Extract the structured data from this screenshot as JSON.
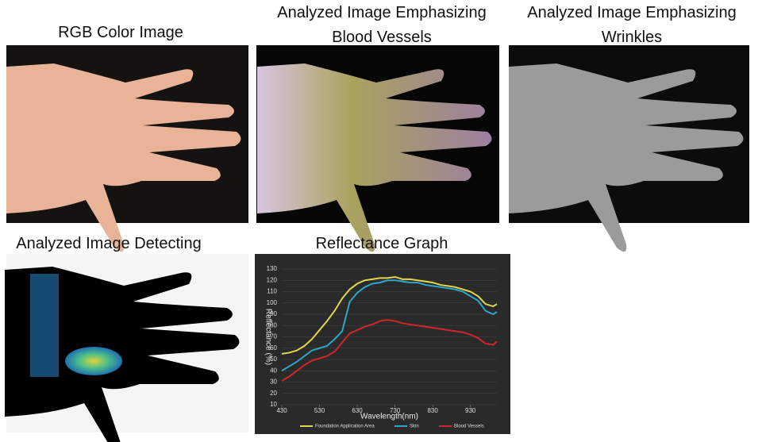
{
  "panels": [
    {
      "title": [
        "RGB Color Image"
      ]
    },
    {
      "title": [
        "Analyzed Image Emphasizing",
        "Blood Vessels"
      ]
    },
    {
      "title": [
        "Analyzed Image Emphasizing",
        "Wrinkles"
      ]
    },
    {
      "title": [
        "Analyzed Image Detecting"
      ]
    },
    {
      "title": [
        "Reflectance Graph"
      ]
    }
  ],
  "chart_data": {
    "type": "line",
    "x_label": "Wavelength(nm)",
    "y_label": "Reflectance (%)",
    "x": [
      430,
      450,
      470,
      490,
      510,
      530,
      550,
      570,
      590,
      610,
      630,
      650,
      670,
      690,
      710,
      730,
      750,
      770,
      790,
      810,
      830,
      850,
      870,
      890,
      910,
      930,
      950,
      970,
      990,
      1000
    ],
    "series": [
      {
        "name": "Foundation Application Area",
        "color": "#e3d64c",
        "values": [
          55,
          56,
          58,
          62,
          68,
          76,
          84,
          93,
          104,
          112,
          117,
          120,
          121,
          122,
          122,
          123,
          121,
          121,
          120,
          119,
          118,
          116,
          115,
          114,
          112,
          110,
          106,
          99,
          97,
          99
        ]
      },
      {
        "name": "Skin",
        "color": "#2aa7c9",
        "values": [
          40,
          44,
          48,
          53,
          58,
          60,
          62,
          68,
          75,
          101,
          109,
          114,
          117,
          118,
          120,
          120,
          119,
          118,
          118,
          116,
          115,
          114,
          113,
          112,
          110,
          106,
          102,
          93,
          90,
          92
        ]
      },
      {
        "name": "Blood Vessels",
        "color": "#d0262a",
        "values": [
          31,
          35,
          40,
          45,
          49,
          51,
          53,
          57,
          65,
          73,
          76,
          79,
          81,
          84,
          85,
          84,
          82,
          81,
          80,
          79,
          78,
          77,
          76,
          75,
          74,
          72,
          69,
          64,
          63,
          66
        ]
      }
    ],
    "xlim": [
      430,
      1000
    ],
    "ylim": [
      10,
      130
    ],
    "xticks": [
      430,
      530,
      630,
      730,
      830,
      930
    ],
    "yticks": [
      10,
      20,
      30,
      40,
      50,
      60,
      70,
      80,
      90,
      100,
      110,
      120,
      130
    ],
    "grid": true
  }
}
